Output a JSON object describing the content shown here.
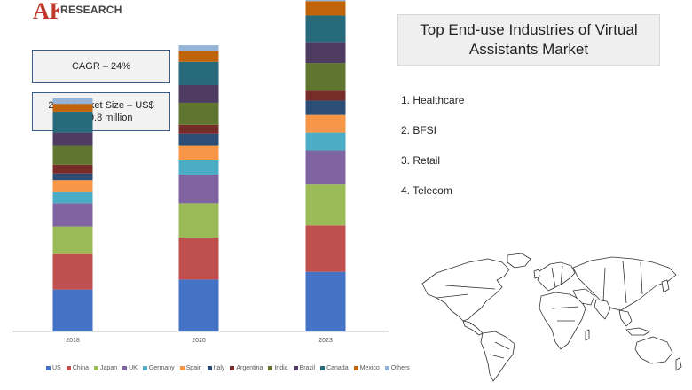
{
  "brand": {
    "name": "RESEARCH",
    "mark": "AK",
    "mark_color": "#c0392b"
  },
  "callouts": {
    "cagr": "CAGR – 24%",
    "market_size": "2018 Market Size – US$ 4,259.8 million"
  },
  "title": "Top End-use Industries of Virtual Assistants Market",
  "industries": [
    "1. Healthcare",
    "2. BFSI",
    "3. Retail",
    "4. Telecom"
  ],
  "chart_data": {
    "type": "bar",
    "stacked": true,
    "categories": [
      "2018",
      "2020",
      "2023"
    ],
    "series": [
      {
        "name": "US",
        "color": "#4472c4",
        "values": [
          38,
          47,
          54
        ]
      },
      {
        "name": "China",
        "color": "#c0504d",
        "values": [
          32,
          38,
          42
        ]
      },
      {
        "name": "Japan",
        "color": "#9bbb59",
        "values": [
          25,
          31,
          37
        ]
      },
      {
        "name": "UK",
        "color": "#8064a2",
        "values": [
          21,
          26,
          31
        ]
      },
      {
        "name": "Germany",
        "color": "#4bacc6",
        "values": [
          10,
          13,
          16
        ]
      },
      {
        "name": "Spain",
        "color": "#f79646",
        "values": [
          11,
          13,
          16
        ]
      },
      {
        "name": "Italy",
        "color": "#2c4d75",
        "values": [
          6,
          11,
          13
        ]
      },
      {
        "name": "Argentina",
        "color": "#772c2a",
        "values": [
          8,
          8,
          9
        ]
      },
      {
        "name": "India",
        "color": "#5f7530",
        "values": [
          17,
          20,
          25
        ]
      },
      {
        "name": "Brazil",
        "color": "#4d3b62",
        "values": [
          12,
          16,
          19
        ]
      },
      {
        "name": "Canada",
        "color": "#276a7c",
        "values": [
          19,
          21,
          24
        ]
      },
      {
        "name": "Mexico",
        "color": "#c0640c",
        "values": [
          7,
          10,
          13
        ]
      },
      {
        "name": "Others",
        "color": "#95b3d7",
        "values": [
          5,
          5,
          5
        ]
      }
    ],
    "xlabel": "",
    "ylabel": "",
    "ylim": [
      0,
      300
    ],
    "grid": false,
    "legend": "bottom"
  },
  "map": {
    "land_color": "#ffffff",
    "stroke_color": "#333333"
  }
}
